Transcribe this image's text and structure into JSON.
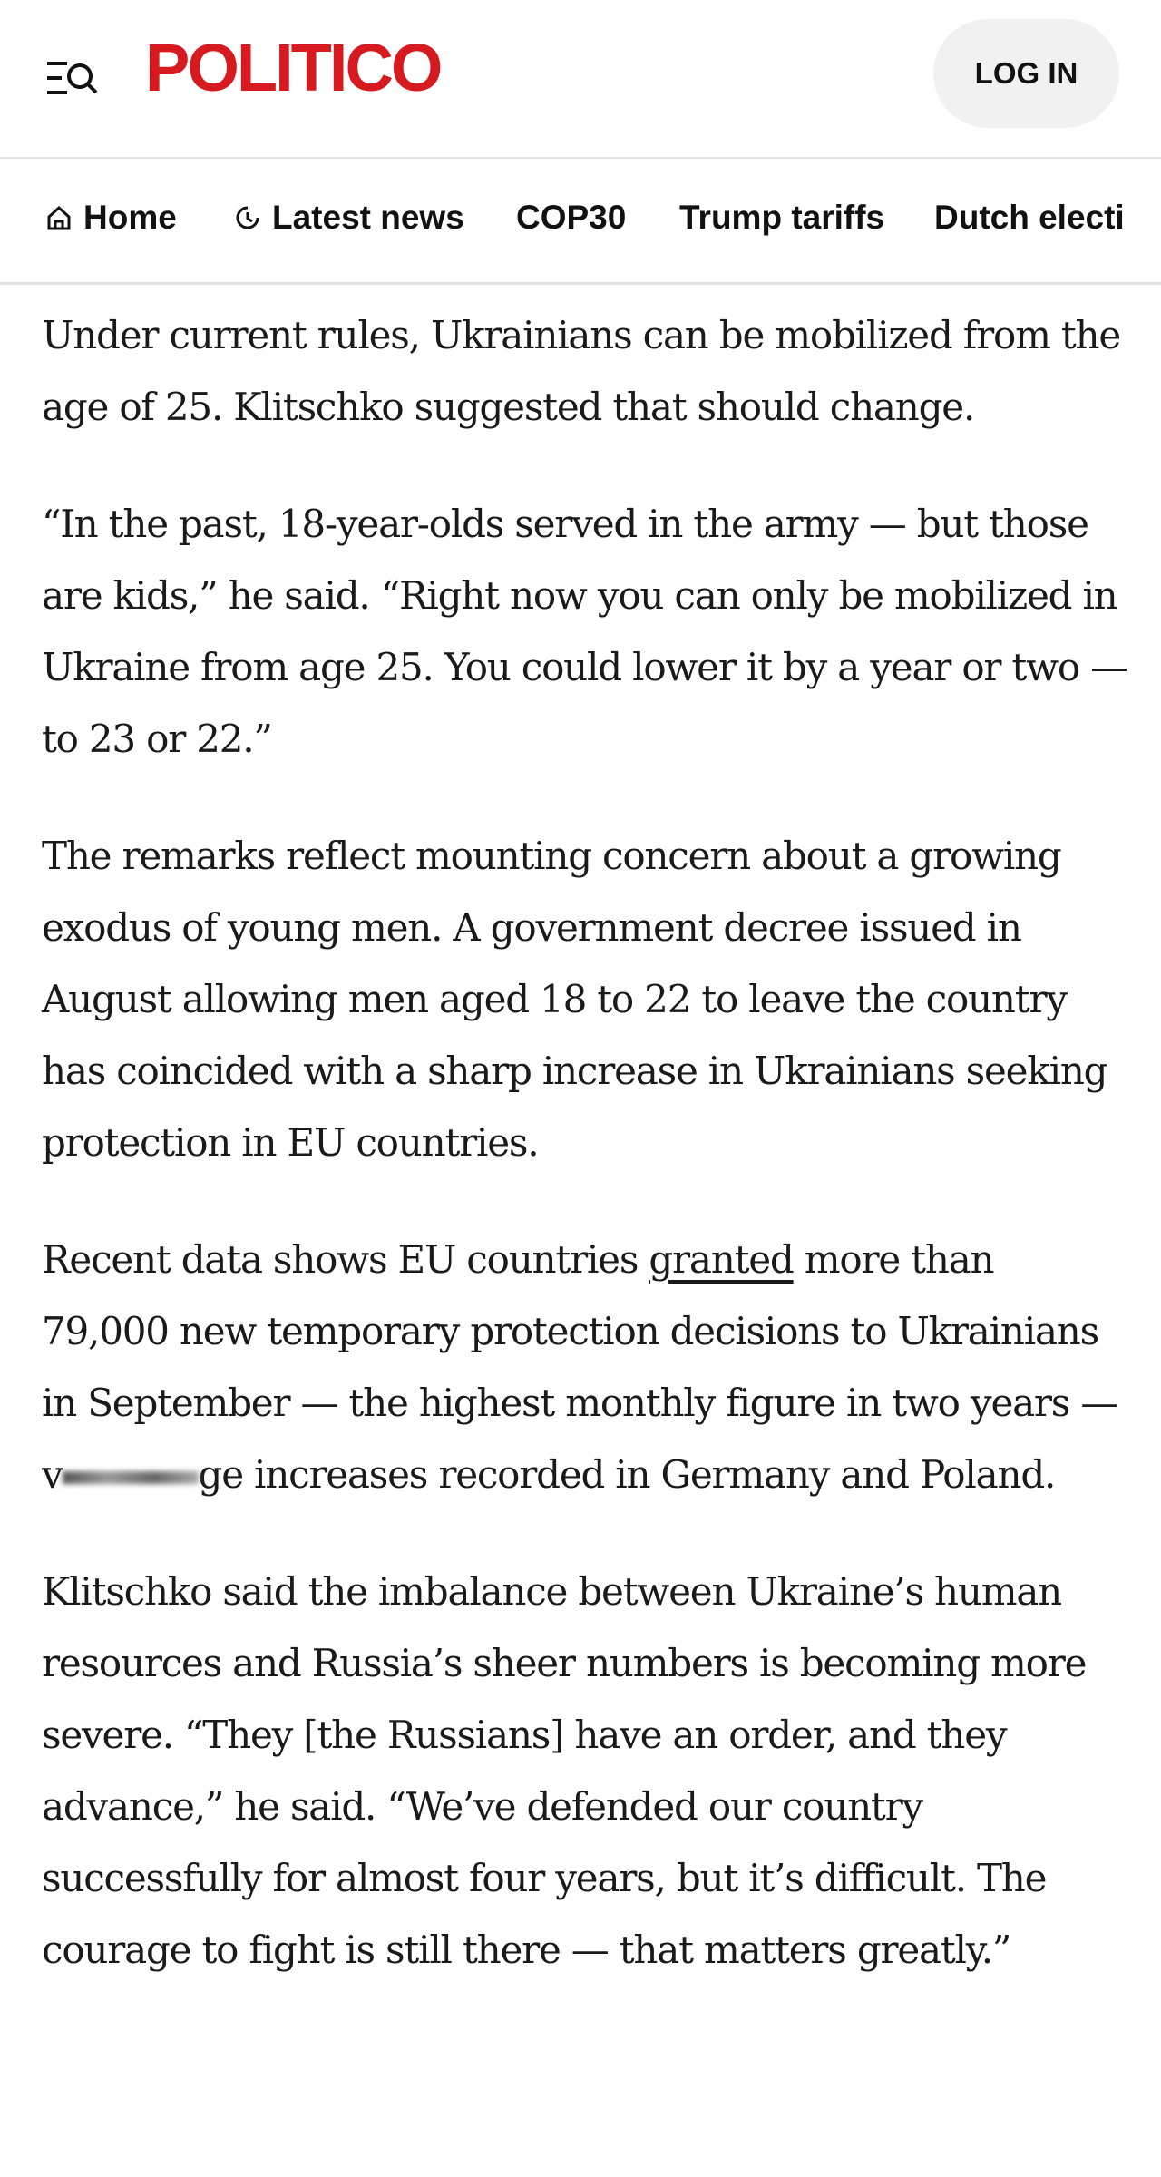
{
  "header": {
    "logo": "POLITICO",
    "login": "LOG IN"
  },
  "nav": [
    "Home",
    "Latest news",
    "COP30",
    "Trump tariffs",
    "Dutch electi"
  ],
  "paragraphs": [
    [
      "Under current rules, Ukrainians can be mobilized from the age of 25. Klitschko suggested that should change."
    ],
    [
      "“In the past, 18-year-olds served in the army — but those are kids,” he said. “Right now you can only be mobilized in Ukraine from age 25. You could lower it by a year or two — to 23 or 22.”"
    ],
    [
      "The remarks reflect mounting concern about a growing exodus of young men. A government decree issued in August allowing men aged 18 to 22 to leave the country has coincided with a sharp increase in Ukrainians seeking protection in EU countries."
    ],
    [
      "Recent data shows EU countries ",
      "granted",
      " more than 79,000 new temporary protection decisions to Ukrainians in September — the highest monthly figure in two years — v",
      "ge increases recorded in Germany and Poland."
    ],
    [
      "Klitschko said the imbalance between Ukraine’s human resources and Russia’s sheer numbers is becoming more severe. “They [the Russians] have an order, and they advance,” he said. “We’ve defended our country successfully for almost four years, but it’s difficult. The courage to fight is still there — that matters greatly.”"
    ]
  ]
}
